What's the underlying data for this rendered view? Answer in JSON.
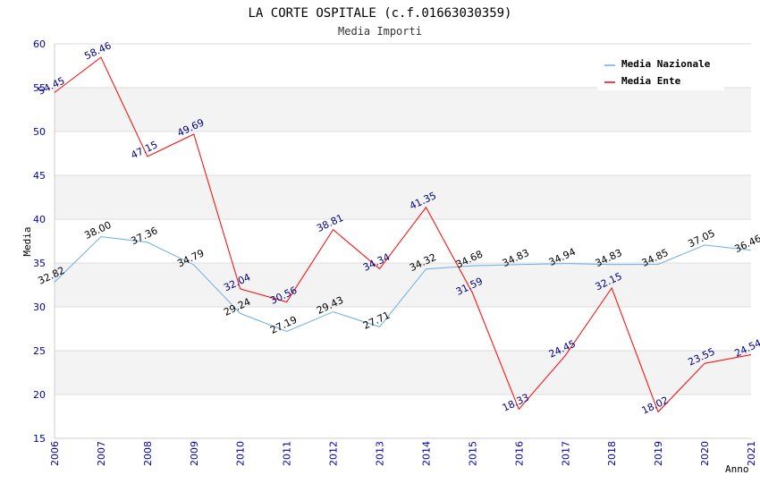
{
  "chart_data": {
    "type": "line",
    "title": "LA CORTE OSPITALE (c.f.01663030359)",
    "subtitle": "Media Importi",
    "xlabel": "Anno",
    "ylabel": "Media",
    "ylim": [
      15,
      60
    ],
    "yticks": [
      "15",
      "20",
      "25",
      "30",
      "35",
      "40",
      "45",
      "50",
      "55",
      "60"
    ],
    "categories": [
      "2006",
      "2007",
      "2008",
      "2009",
      "2010",
      "2011",
      "2012",
      "2013",
      "2014",
      "2015",
      "2016",
      "2017",
      "2018",
      "2019",
      "2020",
      "2021"
    ],
    "legend_position": "top-right",
    "series": [
      {
        "name": "Media Nazionale",
        "color": "#6aaee6",
        "values": [
          32.82,
          38.0,
          37.36,
          34.79,
          29.24,
          27.19,
          29.43,
          27.71,
          34.32,
          34.68,
          34.83,
          34.94,
          34.83,
          34.85,
          37.05,
          36.46
        ],
        "labels": [
          "32.82",
          "38.00",
          "37.36",
          "34.79",
          "29.24",
          "27.19",
          "29.43",
          "27.71",
          "34.32",
          "34.68",
          "34.83",
          "34.94",
          "34.83",
          "34.85",
          "37.05",
          "36.46"
        ]
      },
      {
        "name": "Media Ente",
        "color": "#ff0000",
        "values": [
          54.45,
          58.46,
          47.15,
          49.69,
          32.04,
          30.56,
          38.81,
          34.34,
          41.35,
          31.59,
          18.33,
          24.45,
          32.15,
          18.02,
          23.55,
          24.54
        ],
        "labels": [
          "54.45",
          "58.46",
          "47.15",
          "49.69",
          "32.04",
          "30.56",
          "38.81",
          "34.34",
          "41.35",
          "31.59",
          "18.33",
          "24.45",
          "32.15",
          "18.02",
          "23.55",
          "24.54"
        ]
      }
    ]
  }
}
